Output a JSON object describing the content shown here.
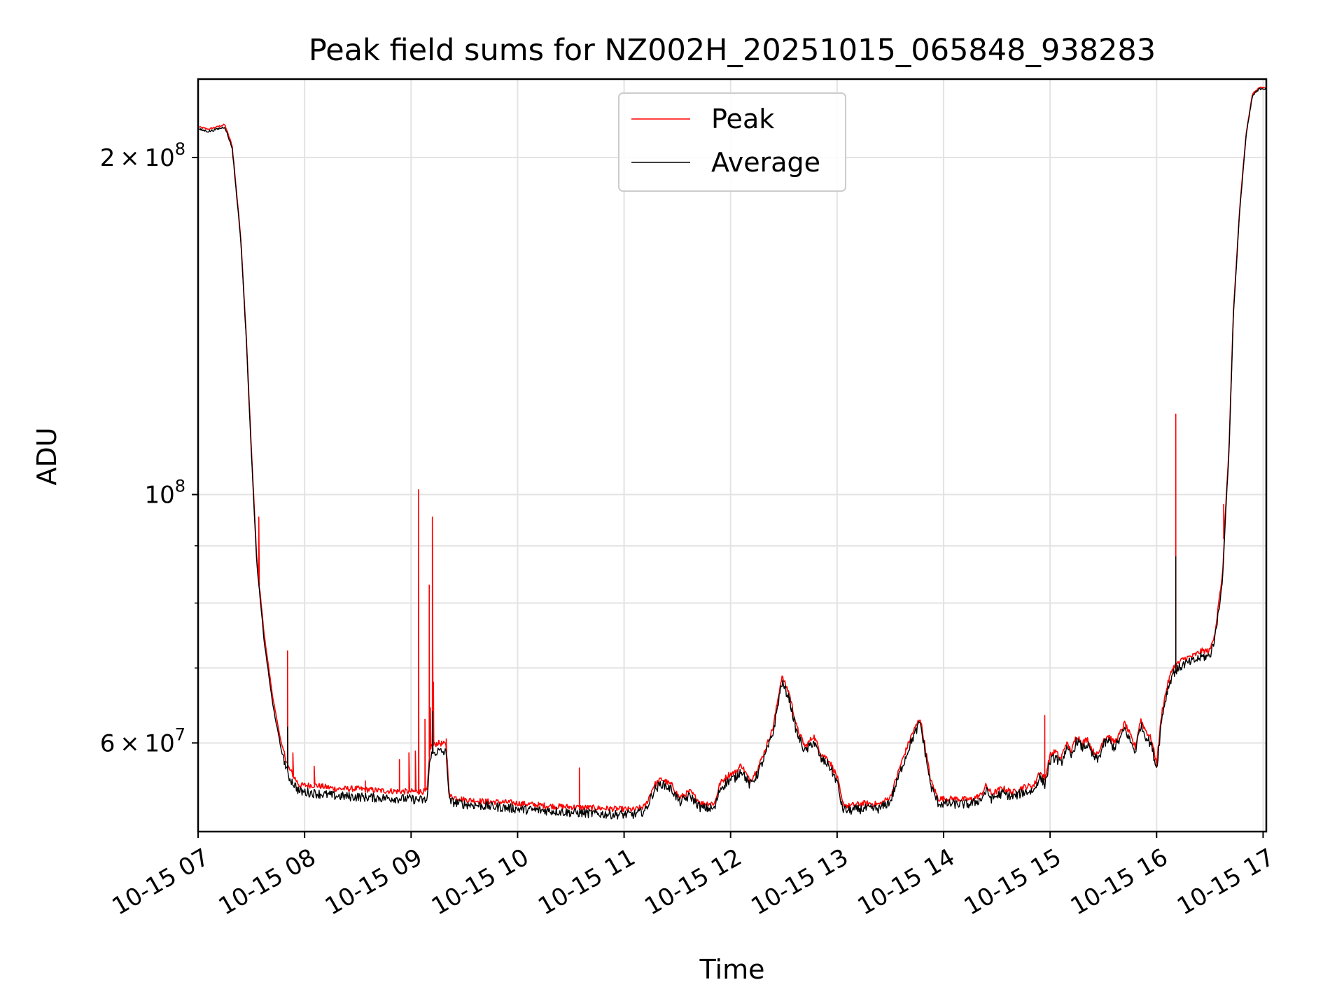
{
  "chart_data": {
    "type": "line",
    "title": "Peak field sums for NZ002H_20251015_065848_938283",
    "xlabel": "Time",
    "ylabel": "ADU",
    "yscale": "log",
    "ylim": [
      50000000,
      235000000
    ],
    "xlim_hours": [
      7.0,
      17.03
    ],
    "grid": true,
    "legend_position": "upper center",
    "x_ticks": [
      {
        "value": 7,
        "label": "10-15 07"
      },
      {
        "value": 8,
        "label": "10-15 08"
      },
      {
        "value": 9,
        "label": "10-15 09"
      },
      {
        "value": 10,
        "label": "10-15 10"
      },
      {
        "value": 11,
        "label": "10-15 11"
      },
      {
        "value": 12,
        "label": "10-15 12"
      },
      {
        "value": 13,
        "label": "10-15 13"
      },
      {
        "value": 14,
        "label": "10-15 14"
      },
      {
        "value": 15,
        "label": "10-15 15"
      },
      {
        "value": 16,
        "label": "10-15 16"
      },
      {
        "value": 17,
        "label": "10-15 17"
      }
    ],
    "y_ticks": [
      {
        "value": 60000000,
        "mantissa": "6",
        "exp": "7"
      },
      {
        "value": 100000000,
        "mantissa": "",
        "exp": "8"
      },
      {
        "value": 200000000,
        "mantissa": "2",
        "exp": "8"
      }
    ],
    "y_minor_ticks": [
      70000000,
      80000000,
      90000000
    ],
    "series": [
      {
        "name": "Peak",
        "color": "#ff0000",
        "points": [
          [
            7.0,
            213000000
          ],
          [
            7.1,
            212000000
          ],
          [
            7.25,
            214000000
          ],
          [
            7.32,
            205000000
          ],
          [
            7.4,
            170000000
          ],
          [
            7.45,
            140000000
          ],
          [
            7.5,
            110000000
          ],
          [
            7.55,
            88000000
          ],
          [
            7.62,
            75000000
          ],
          [
            7.7,
            66000000
          ],
          [
            7.78,
            60000000
          ],
          [
            7.85,
            57000000
          ],
          [
            7.95,
            55000000
          ],
          [
            8.1,
            55000000
          ],
          [
            8.3,
            54600000
          ],
          [
            8.5,
            54600000
          ],
          [
            8.7,
            54400000
          ],
          [
            8.95,
            54300000
          ],
          [
            9.05,
            54300000
          ],
          [
            9.15,
            54300000
          ],
          [
            9.18,
            59500000
          ],
          [
            9.25,
            60000000
          ],
          [
            9.33,
            59800000
          ],
          [
            9.36,
            53800000
          ],
          [
            9.5,
            53400000
          ],
          [
            9.7,
            53200000
          ],
          [
            9.9,
            53100000
          ],
          [
            10.1,
            52900000
          ],
          [
            10.3,
            52700000
          ],
          [
            10.5,
            52600000
          ],
          [
            10.7,
            52500000
          ],
          [
            10.9,
            52400000
          ],
          [
            11.1,
            52300000
          ],
          [
            11.2,
            52700000
          ],
          [
            11.28,
            55000000
          ],
          [
            11.35,
            55700000
          ],
          [
            11.45,
            55000000
          ],
          [
            11.52,
            53600000
          ],
          [
            11.62,
            54300000
          ],
          [
            11.72,
            53000000
          ],
          [
            11.85,
            53000000
          ],
          [
            11.9,
            55200000
          ],
          [
            11.98,
            56200000
          ],
          [
            12.05,
            56500000
          ],
          [
            12.1,
            57400000
          ],
          [
            12.18,
            55500000
          ],
          [
            12.25,
            56800000
          ],
          [
            12.32,
            59000000
          ],
          [
            12.4,
            62000000
          ],
          [
            12.48,
            68800000
          ],
          [
            12.55,
            66500000
          ],
          [
            12.62,
            62000000
          ],
          [
            12.7,
            59500000
          ],
          [
            12.78,
            60900000
          ],
          [
            12.85,
            58700000
          ],
          [
            12.92,
            58000000
          ],
          [
            13.0,
            56000000
          ],
          [
            13.05,
            53000000
          ],
          [
            13.1,
            52700000
          ],
          [
            13.25,
            53000000
          ],
          [
            13.4,
            52900000
          ],
          [
            13.5,
            53700000
          ],
          [
            13.6,
            57500000
          ],
          [
            13.7,
            61000000
          ],
          [
            13.78,
            63200000
          ],
          [
            13.82,
            60000000
          ],
          [
            13.88,
            55500000
          ],
          [
            13.95,
            53500000
          ],
          [
            14.1,
            53500000
          ],
          [
            14.25,
            53400000
          ],
          [
            14.35,
            53900000
          ],
          [
            14.4,
            55000000
          ],
          [
            14.45,
            54000000
          ],
          [
            14.55,
            54700000
          ],
          [
            14.65,
            54200000
          ],
          [
            14.75,
            54800000
          ],
          [
            14.85,
            55000000
          ],
          [
            14.9,
            56600000
          ],
          [
            14.95,
            55700000
          ],
          [
            15.0,
            58500000
          ],
          [
            15.05,
            59000000
          ],
          [
            15.1,
            58000000
          ],
          [
            15.15,
            60000000
          ],
          [
            15.2,
            59000000
          ],
          [
            15.25,
            61000000
          ],
          [
            15.3,
            60000000
          ],
          [
            15.35,
            60500000
          ],
          [
            15.4,
            59000000
          ],
          [
            15.45,
            58500000
          ],
          [
            15.5,
            60500000
          ],
          [
            15.55,
            61000000
          ],
          [
            15.6,
            60000000
          ],
          [
            15.65,
            61000000
          ],
          [
            15.7,
            62500000
          ],
          [
            15.75,
            61000000
          ],
          [
            15.8,
            59500000
          ],
          [
            15.85,
            63000000
          ],
          [
            15.9,
            61500000
          ],
          [
            15.95,
            60500000
          ],
          [
            16.0,
            57500000
          ],
          [
            16.05,
            64000000
          ],
          [
            16.1,
            67500000
          ],
          [
            16.15,
            70000000
          ],
          [
            16.25,
            71300000
          ],
          [
            16.35,
            71800000
          ],
          [
            16.42,
            72500000
          ],
          [
            16.5,
            72500000
          ],
          [
            16.55,
            75500000
          ],
          [
            16.62,
            85000000
          ],
          [
            16.65,
            98000000
          ],
          [
            16.68,
            110000000
          ],
          [
            16.72,
            145000000
          ],
          [
            16.78,
            180000000
          ],
          [
            16.84,
            210000000
          ],
          [
            16.9,
            228000000
          ],
          [
            16.97,
            231000000
          ],
          [
            17.03,
            231000000
          ]
        ],
        "spikes": [
          [
            7.57,
            95500000
          ],
          [
            7.84,
            72500000
          ],
          [
            7.89,
            58800000
          ],
          [
            8.09,
            57200000
          ],
          [
            8.57,
            55500000
          ],
          [
            8.89,
            58000000
          ],
          [
            8.98,
            58800000
          ],
          [
            9.04,
            59000000
          ],
          [
            9.07,
            101000000
          ],
          [
            9.13,
            63000000
          ],
          [
            9.17,
            83000000
          ],
          [
            9.18,
            64500000
          ],
          [
            9.2,
            95500000
          ],
          [
            9.21,
            68000000
          ],
          [
            9.33,
            60500000
          ],
          [
            10.58,
            57000000
          ],
          [
            14.95,
            63500000
          ],
          [
            16.18,
            118000000
          ],
          [
            16.63,
            98000000
          ]
        ]
      },
      {
        "name": "Average",
        "color": "#000000",
        "points": [
          [
            7.0,
            212000000
          ],
          [
            7.1,
            211000000
          ],
          [
            7.25,
            213000000
          ],
          [
            7.32,
            204000000
          ],
          [
            7.4,
            169000000
          ],
          [
            7.45,
            139000000
          ],
          [
            7.5,
            109000000
          ],
          [
            7.55,
            87000000
          ],
          [
            7.62,
            74000000
          ],
          [
            7.7,
            65000000
          ],
          [
            7.78,
            59200000
          ],
          [
            7.85,
            56000000
          ],
          [
            7.95,
            54300000
          ],
          [
            8.1,
            54100000
          ],
          [
            8.3,
            53800000
          ],
          [
            8.5,
            53700000
          ],
          [
            8.7,
            53600000
          ],
          [
            8.95,
            53500000
          ],
          [
            9.05,
            53400000
          ],
          [
            9.15,
            53300000
          ],
          [
            9.18,
            58500000
          ],
          [
            9.25,
            59000000
          ],
          [
            9.33,
            58800000
          ],
          [
            9.36,
            53200000
          ],
          [
            9.5,
            52900000
          ],
          [
            9.7,
            52700000
          ],
          [
            9.9,
            52500000
          ],
          [
            10.1,
            52300000
          ],
          [
            10.3,
            52200000
          ],
          [
            10.5,
            52000000
          ],
          [
            10.7,
            51900000
          ],
          [
            10.9,
            51800000
          ],
          [
            11.1,
            51800000
          ],
          [
            11.2,
            52200000
          ],
          [
            11.28,
            54400000
          ],
          [
            11.35,
            55200000
          ],
          [
            11.45,
            54500000
          ],
          [
            11.52,
            53100000
          ],
          [
            11.62,
            53800000
          ],
          [
            11.72,
            52500000
          ],
          [
            11.85,
            52400000
          ],
          [
            11.9,
            54600000
          ],
          [
            11.98,
            55500000
          ],
          [
            12.05,
            55900000
          ],
          [
            12.1,
            56800000
          ],
          [
            12.18,
            55000000
          ],
          [
            12.25,
            56200000
          ],
          [
            12.32,
            58300000
          ],
          [
            12.4,
            61300000
          ],
          [
            12.48,
            68000000
          ],
          [
            12.55,
            65800000
          ],
          [
            12.62,
            61300000
          ],
          [
            12.7,
            58900000
          ],
          [
            12.78,
            60200000
          ],
          [
            12.85,
            58000000
          ],
          [
            12.92,
            57400000
          ],
          [
            13.0,
            55400000
          ],
          [
            13.05,
            52400000
          ],
          [
            13.1,
            52200000
          ],
          [
            13.25,
            52400000
          ],
          [
            13.4,
            52400000
          ],
          [
            13.5,
            53200000
          ],
          [
            13.6,
            56800000
          ],
          [
            13.7,
            60300000
          ],
          [
            13.78,
            62600000
          ],
          [
            13.82,
            59400000
          ],
          [
            13.88,
            54900000
          ],
          [
            13.95,
            53000000
          ],
          [
            14.1,
            52900000
          ],
          [
            14.25,
            52900000
          ],
          [
            14.35,
            53400000
          ],
          [
            14.4,
            54400000
          ],
          [
            14.45,
            53500000
          ],
          [
            14.55,
            54100000
          ],
          [
            14.65,
            53700000
          ],
          [
            14.75,
            54200000
          ],
          [
            14.85,
            54400000
          ],
          [
            14.9,
            56000000
          ],
          [
            14.95,
            55100000
          ],
          [
            15.0,
            57800000
          ],
          [
            15.05,
            58300000
          ],
          [
            15.1,
            57400000
          ],
          [
            15.15,
            59300000
          ],
          [
            15.2,
            58300000
          ],
          [
            15.25,
            60300000
          ],
          [
            15.3,
            59400000
          ],
          [
            15.35,
            59800000
          ],
          [
            15.4,
            58400000
          ],
          [
            15.45,
            57900000
          ],
          [
            15.5,
            59800000
          ],
          [
            15.55,
            60300000
          ],
          [
            15.6,
            59400000
          ],
          [
            15.65,
            60300000
          ],
          [
            15.7,
            61800000
          ],
          [
            15.75,
            60300000
          ],
          [
            15.8,
            58900000
          ],
          [
            15.85,
            62300000
          ],
          [
            15.9,
            60800000
          ],
          [
            15.95,
            59800000
          ],
          [
            16.0,
            56900000
          ],
          [
            16.05,
            63300000
          ],
          [
            16.1,
            66800000
          ],
          [
            16.15,
            69200000
          ],
          [
            16.25,
            70500000
          ],
          [
            16.35,
            71000000
          ],
          [
            16.42,
            71600000
          ],
          [
            16.5,
            71700000
          ],
          [
            16.55,
            74700000
          ],
          [
            16.62,
            84000000
          ],
          [
            16.65,
            97000000
          ],
          [
            16.68,
            109000000
          ],
          [
            16.72,
            144000000
          ],
          [
            16.78,
            179000000
          ],
          [
            16.84,
            209000000
          ],
          [
            16.9,
            227000000
          ],
          [
            16.97,
            230500000
          ],
          [
            17.03,
            230500000
          ]
        ],
        "spikes": [
          [
            7.84,
            62000000
          ],
          [
            9.2,
            64000000
          ],
          [
            16.18,
            88000000
          ]
        ]
      }
    ]
  }
}
